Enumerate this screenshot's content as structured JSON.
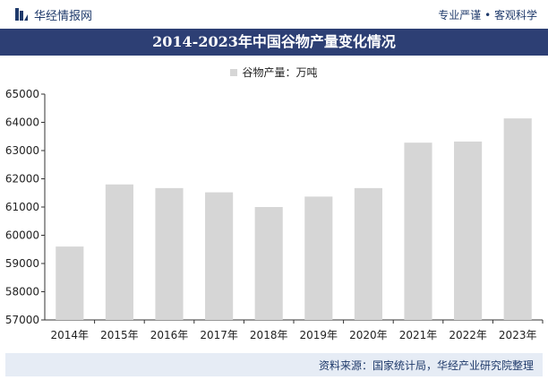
{
  "header": {
    "brand": "华经情报网",
    "tagline": "专业严谨 • 客观科学"
  },
  "footer": {
    "source": "资料来源：国家统计局，华经产业研究院整理"
  },
  "colors": {
    "bar": "#d6d6d6",
    "title_bg": "#2d3f74",
    "brand": "#1f3a6b"
  },
  "chart_data": {
    "type": "bar",
    "title": "2014-2023年中国谷物产量变化情况",
    "categories": [
      "2014年",
      "2015年",
      "2016年",
      "2017年",
      "2018年",
      "2019年",
      "2020年",
      "2021年",
      "2022年",
      "2023年"
    ],
    "series": [
      {
        "name": "谷物产量：万吨",
        "values": [
          59600,
          61800,
          61670,
          61520,
          61000,
          61370,
          61670,
          63280,
          63320,
          64140
        ]
      }
    ],
    "ylim": [
      57000,
      65000
    ],
    "yticks": [
      57000,
      58000,
      59000,
      60000,
      61000,
      62000,
      63000,
      64000,
      65000
    ],
    "grid": false,
    "legend": "top-center"
  }
}
